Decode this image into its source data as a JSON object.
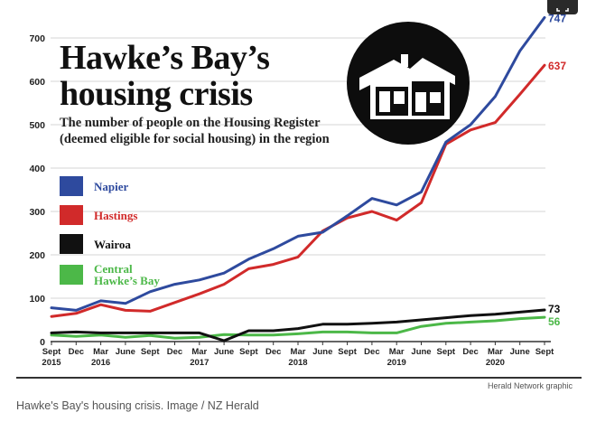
{
  "chart_data": {
    "type": "line",
    "title": "Hawke's Bay's housing crisis",
    "title_lines": [
      "Hawke’s Bay’s",
      "housing crisis"
    ],
    "subtitle": "The number of people on the Housing Register (deemed eligible for social housing) in the region",
    "subtitle_lines": [
      "The number of people on the Housing Register",
      "(deemed eligible for social housing) in the region"
    ],
    "xlabel": "",
    "ylabel": "",
    "ylim": [
      0,
      750
    ],
    "yticks": [
      0,
      100,
      200,
      300,
      400,
      500,
      600,
      700
    ],
    "grid": true,
    "legend_position": "left",
    "x": [
      "Sep 2015",
      "Dec 2015",
      "Mar 2016",
      "Jun 2016",
      "Sep 2016",
      "Dec 2016",
      "Mar 2017",
      "Jun 2017",
      "Sep 2017",
      "Dec 2017",
      "Mar 2018",
      "Jun 2018",
      "Sep 2018",
      "Dec 2018",
      "Mar 2019",
      "Jun 2019",
      "Sep 2019",
      "Dec 2019",
      "Mar 2020",
      "Jun 2020",
      "Sep 2020"
    ],
    "xtick_labels": [
      {
        "month": "Sept",
        "year": "2015"
      },
      {
        "month": "Dec",
        "year": ""
      },
      {
        "month": "Mar",
        "year": "2016"
      },
      {
        "month": "June",
        "year": ""
      },
      {
        "month": "Sept",
        "year": ""
      },
      {
        "month": "Dec",
        "year": ""
      },
      {
        "month": "Mar",
        "year": "2017"
      },
      {
        "month": "June",
        "year": ""
      },
      {
        "month": "Sept",
        "year": ""
      },
      {
        "month": "Dec",
        "year": ""
      },
      {
        "month": "Mar",
        "year": "2018"
      },
      {
        "month": "June",
        "year": ""
      },
      {
        "month": "Sept",
        "year": ""
      },
      {
        "month": "Dec",
        "year": ""
      },
      {
        "month": "Mar",
        "year": "2019"
      },
      {
        "month": "June",
        "year": ""
      },
      {
        "month": "Sept",
        "year": ""
      },
      {
        "month": "Dec",
        "year": ""
      },
      {
        "month": "Mar",
        "year": "2020"
      },
      {
        "month": "June",
        "year": ""
      },
      {
        "month": "Sept",
        "year": ""
      }
    ],
    "series": [
      {
        "name": "Napier",
        "color": "#2e4a9e",
        "end_label": "747",
        "values": [
          78,
          72,
          94,
          88,
          115,
          132,
          142,
          158,
          190,
          214,
          243,
          252,
          290,
          330,
          315,
          345,
          460,
          500,
          565,
          670,
          747
        ]
      },
      {
        "name": "Hastings",
        "color": "#d12a2a",
        "end_label": "637",
        "values": [
          58,
          65,
          85,
          72,
          70,
          90,
          110,
          132,
          168,
          178,
          195,
          255,
          285,
          300,
          280,
          320,
          455,
          488,
          505,
          570,
          637
        ]
      },
      {
        "name": "Wairoa",
        "color": "#111111",
        "end_label": "73",
        "values": [
          20,
          22,
          20,
          20,
          20,
          20,
          20,
          2,
          25,
          25,
          30,
          40,
          40,
          42,
          45,
          50,
          55,
          60,
          63,
          68,
          73
        ]
      },
      {
        "name": "Central Hawke's Bay",
        "color": "#4cb848",
        "end_label": "56",
        "legend_lines": [
          "Central",
          "Hawke’s Bay"
        ],
        "values": [
          15,
          12,
          15,
          10,
          14,
          8,
          10,
          16,
          15,
          15,
          18,
          22,
          22,
          20,
          20,
          35,
          42,
          45,
          48,
          53,
          56
        ]
      }
    ]
  },
  "footer": {
    "credit": "Herald Network graphic",
    "caption": "Hawke's Bay's housing crisis. Image / NZ Herald"
  }
}
